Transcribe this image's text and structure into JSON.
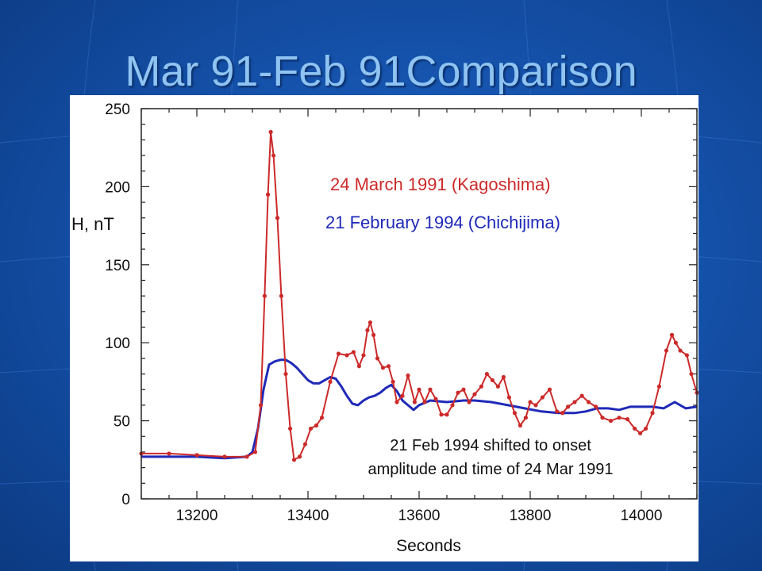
{
  "slide": {
    "title": "Mar 91-Feb 91Comparison"
  },
  "chart_data": {
    "type": "line",
    "xlabel": "Seconds",
    "ylabel": "H, nT",
    "xlim": [
      13100,
      14100
    ],
    "ylim": [
      0,
      250
    ],
    "x_ticks": [
      13200,
      13400,
      13600,
      13800,
      14000
    ],
    "y_ticks": [
      0,
      50,
      100,
      150,
      200,
      250
    ],
    "grid": false,
    "annotation": [
      "21 Feb 1994 shifted to onset",
      "amplitude and time of 24 Mar 1991"
    ],
    "series": [
      {
        "name": "24 March 1991 (Kagoshima)",
        "color": "#cc2a2a",
        "marker": "dot",
        "x": [
          13100,
          13150,
          13200,
          13250,
          13290,
          13305,
          13315,
          13322,
          13328,
          13333,
          13338,
          13345,
          13352,
          13360,
          13368,
          13375,
          13385,
          13395,
          13405,
          13415,
          13425,
          13440,
          13455,
          13470,
          13482,
          13492,
          13500,
          13507,
          13512,
          13518,
          13525,
          13535,
          13545,
          13553,
          13560,
          13570,
          13580,
          13592,
          13600,
          13610,
          13620,
          13630,
          13640,
          13650,
          13660,
          13670,
          13680,
          13690,
          13700,
          13712,
          13722,
          13732,
          13742,
          13752,
          13762,
          13772,
          13782,
          13792,
          13800,
          13810,
          13822,
          13835,
          13848,
          13858,
          13868,
          13880,
          13893,
          13905,
          13918,
          13930,
          13945,
          13960,
          13975,
          13988,
          13998,
          14008,
          14020,
          14032,
          14045,
          14055,
          14062,
          14070,
          14082,
          14090,
          14100
        ],
        "y": [
          29,
          29,
          28,
          27,
          27,
          30,
          60,
          130,
          195,
          235,
          220,
          180,
          130,
          80,
          45,
          25,
          27,
          35,
          45,
          47,
          52,
          75,
          93,
          92,
          94,
          85,
          92,
          108,
          113,
          105,
          90,
          84,
          85,
          75,
          62,
          66,
          79,
          62,
          70,
          62,
          70,
          64,
          54,
          54,
          60,
          68,
          70,
          62,
          67,
          72,
          80,
          76,
          72,
          78,
          65,
          55,
          47,
          52,
          62,
          60,
          65,
          70,
          56,
          55,
          59,
          62,
          66,
          62,
          59,
          52,
          50,
          52,
          51,
          45,
          42,
          45,
          55,
          72,
          95,
          105,
          100,
          95,
          92,
          80,
          68
        ]
      },
      {
        "name": "21 February 1994 (Chichijima)",
        "color": "#1f2ab8",
        "marker": "none",
        "x": [
          13100,
          13150,
          13200,
          13250,
          13290,
          13300,
          13310,
          13320,
          13330,
          13340,
          13350,
          13360,
          13370,
          13380,
          13390,
          13400,
          13410,
          13420,
          13430,
          13440,
          13450,
          13460,
          13470,
          13480,
          13490,
          13500,
          13510,
          13520,
          13530,
          13540,
          13550,
          13560,
          13570,
          13580,
          13590,
          13600,
          13620,
          13650,
          13680,
          13700,
          13730,
          13760,
          13790,
          13820,
          13850,
          13880,
          13900,
          13920,
          13940,
          13960,
          13980,
          14000,
          14020,
          14040,
          14060,
          14080,
          14100
        ],
        "y": [
          27,
          27,
          27,
          26,
          27,
          30,
          45,
          70,
          86,
          88,
          89,
          89,
          87,
          84,
          80,
          76,
          74,
          74,
          76,
          78,
          77,
          72,
          66,
          61,
          60,
          63,
          65,
          66,
          68,
          71,
          73,
          69,
          63,
          60,
          57,
          60,
          63,
          62,
          63,
          63,
          62,
          60,
          58,
          56,
          55,
          55,
          56,
          58,
          58,
          57,
          59,
          59,
          59,
          58,
          62,
          58,
          59
        ]
      }
    ]
  }
}
